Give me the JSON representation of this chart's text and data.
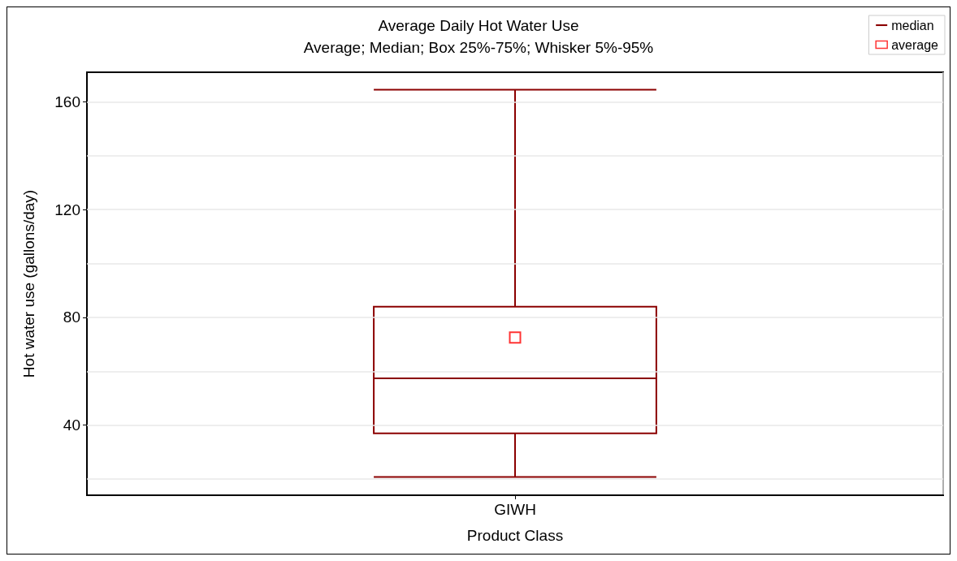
{
  "chart_data": {
    "type": "box",
    "title": "Average Daily Hot Water Use",
    "subtitle": "Average; Median; Box 25%-75%; Whisker 5%-95%",
    "xlabel": "Product Class",
    "ylabel": "Hot water use (gallons/day)",
    "categories": [
      "GIWH"
    ],
    "series": [
      {
        "name": "median",
        "color": "#8b0000",
        "boxes": [
          {
            "low": 20.8,
            "q1": 37,
            "median": 57.4,
            "q3": 84,
            "high": 164.5
          }
        ]
      },
      {
        "name": "average",
        "type": "scatter",
        "color": "#ff0000",
        "x": [
          "GIWH"
        ],
        "values": [
          72.5
        ]
      }
    ],
    "ylim": [
      14,
      171
    ],
    "yticks": [
      {
        "value": 20,
        "label": null
      },
      40,
      {
        "value": 60,
        "label": null
      },
      80,
      {
        "value": 100,
        "label": null
      },
      120,
      {
        "value": 140,
        "label": null
      },
      160
    ],
    "grid": true,
    "legend": "top right",
    "marker": "square"
  }
}
